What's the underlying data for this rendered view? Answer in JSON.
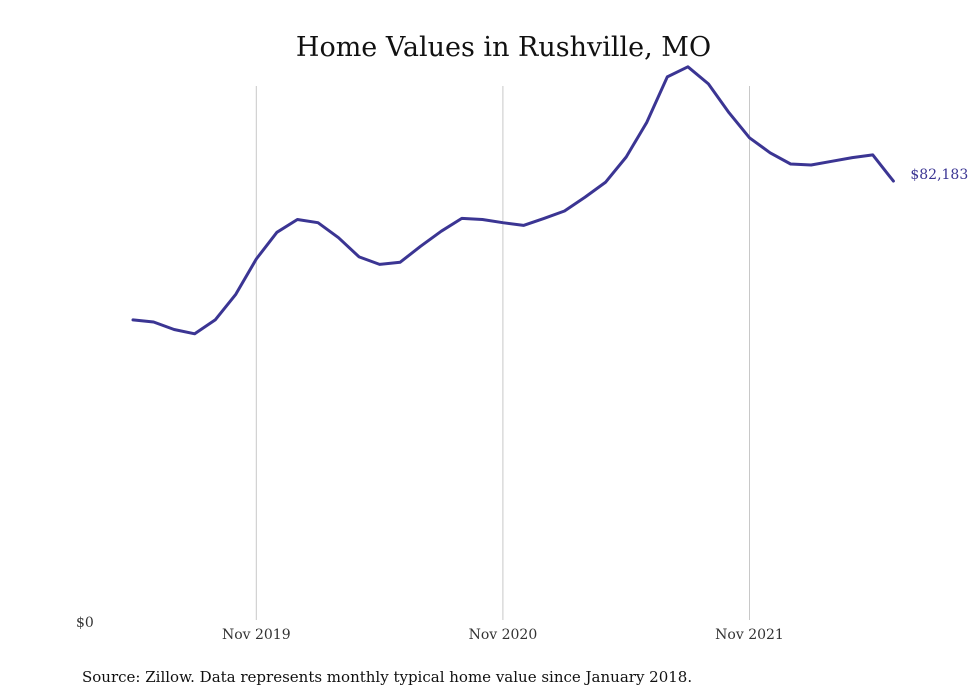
{
  "chart_data": {
    "type": "line",
    "title": "Home Values in Rushville, MO",
    "source": "Source: Zillow. Data represents monthly typical home value since January 2018.",
    "y_axis_label": "$0",
    "x_ticks": [
      "Nov 2019",
      "Nov 2020",
      "Nov 2021"
    ],
    "end_label": "$82,183",
    "line_color": "#3b3593",
    "grid_color": "#c8c8c8",
    "ylim": [
      0,
      100000
    ],
    "x_range": [
      "2019-05",
      "2022-06"
    ],
    "series": [
      {
        "x": [
          "2019-05",
          "2019-06",
          "2019-07",
          "2019-08",
          "2019-09",
          "2019-10",
          "2019-11",
          "2019-12",
          "2020-01",
          "2020-02",
          "2020-03",
          "2020-04",
          "2020-05",
          "2020-06",
          "2020-07",
          "2020-08",
          "2020-09",
          "2020-10",
          "2020-11",
          "2020-12",
          "2021-01",
          "2021-02",
          "2021-03",
          "2021-04",
          "2021-05",
          "2021-06",
          "2021-07",
          "2021-08",
          "2021-09",
          "2021-10",
          "2021-11",
          "2021-12",
          "2022-01",
          "2022-02",
          "2022-03",
          "2022-04",
          "2022-05",
          "2022-06"
        ],
        "values": [
          56200,
          55800,
          54400,
          53600,
          56200,
          61000,
          67600,
          72600,
          75000,
          74400,
          71600,
          68000,
          66600,
          67000,
          70000,
          72800,
          75200,
          75000,
          74400,
          73900,
          75200,
          76600,
          79200,
          82000,
          86700,
          93200,
          101700,
          103600,
          100400,
          95000,
          90300,
          87500,
          85400,
          85200,
          85900,
          86600,
          87100,
          82183
        ]
      }
    ]
  }
}
